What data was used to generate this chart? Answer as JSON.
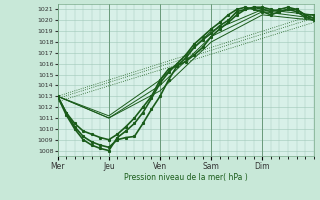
{
  "xlabel": "Pression niveau de la mer( hPa )",
  "background_color": "#c8e8d8",
  "plot_bg_color": "#d8f0e8",
  "grid_color": "#a0c8b8",
  "line_color": "#1a5c1a",
  "dot_color": "#2a7a2a",
  "ylim": [
    1007.5,
    1021.5
  ],
  "yticks": [
    1008,
    1009,
    1010,
    1011,
    1012,
    1013,
    1014,
    1015,
    1016,
    1017,
    1018,
    1019,
    1020,
    1021
  ],
  "day_labels": [
    "Mer",
    "Jeu",
    "Ven",
    "Sam",
    "Dim"
  ],
  "day_positions": [
    0,
    24,
    48,
    72,
    96
  ],
  "xlim": [
    0,
    120
  ],
  "bold_series": [
    [
      0,
      1013.0,
      4,
      1011.5,
      8,
      1010.2,
      12,
      1009.3,
      16,
      1008.8,
      20,
      1008.5,
      24,
      1008.3,
      28,
      1009.0,
      32,
      1009.2,
      36,
      1009.3,
      40,
      1010.5,
      44,
      1011.8,
      48,
      1013.0,
      52,
      1014.5,
      56,
      1015.8,
      60,
      1016.5,
      64,
      1017.5,
      68,
      1018.2,
      72,
      1018.8,
      76,
      1019.5,
      80,
      1020.0,
      84,
      1020.8,
      88,
      1021.0,
      92,
      1021.2,
      96,
      1021.0,
      100,
      1020.8,
      104,
      1021.0,
      108,
      1021.2,
      112,
      1021.0,
      116,
      1020.5,
      120,
      1020.2
    ],
    [
      0,
      1013.0,
      4,
      1011.3,
      8,
      1010.0,
      12,
      1009.0,
      16,
      1008.5,
      20,
      1008.2,
      24,
      1008.0,
      28,
      1009.2,
      32,
      1009.8,
      36,
      1010.5,
      40,
      1011.5,
      44,
      1012.8,
      48,
      1014.2,
      52,
      1015.2,
      56,
      1016.0,
      60,
      1016.8,
      64,
      1017.8,
      68,
      1018.5,
      72,
      1019.2,
      76,
      1019.8,
      80,
      1020.5,
      84,
      1021.0,
      88,
      1021.2,
      92,
      1021.0,
      96,
      1020.8,
      100,
      1020.5,
      104,
      1020.8,
      108,
      1021.0,
      112,
      1020.8,
      116,
      1020.3,
      120,
      1020.0
    ],
    [
      0,
      1013.0,
      4,
      1011.5,
      8,
      1010.5,
      12,
      1009.8,
      16,
      1009.5,
      20,
      1009.2,
      24,
      1009.0,
      28,
      1009.5,
      32,
      1010.2,
      36,
      1011.0,
      40,
      1012.0,
      44,
      1013.0,
      48,
      1014.5,
      52,
      1015.5,
      56,
      1015.8,
      60,
      1016.2,
      64,
      1016.8,
      68,
      1017.5,
      72,
      1018.5,
      76,
      1019.2,
      80,
      1019.8,
      84,
      1020.5,
      88,
      1021.0,
      92,
      1021.2,
      96,
      1021.2,
      100,
      1021.0,
      104,
      1020.8,
      108,
      1021.0,
      112,
      1021.0,
      116,
      1020.5,
      120,
      1020.5
    ]
  ],
  "thin_series": [
    [
      0,
      1013.0,
      24,
      1011.0,
      48,
      1013.5,
      72,
      1018.0,
      96,
      1020.5,
      120,
      1020.0
    ],
    [
      0,
      1013.0,
      24,
      1011.0,
      48,
      1014.0,
      72,
      1018.5,
      96,
      1020.8,
      120,
      1020.2
    ],
    [
      0,
      1013.0,
      24,
      1011.2,
      48,
      1014.5,
      72,
      1019.0,
      96,
      1021.0,
      120,
      1020.5
    ]
  ],
  "dotted_series": [
    [
      0,
      1012.5,
      120,
      1019.8
    ],
    [
      0,
      1012.8,
      120,
      1020.2
    ],
    [
      0,
      1013.0,
      120,
      1020.5
    ]
  ]
}
